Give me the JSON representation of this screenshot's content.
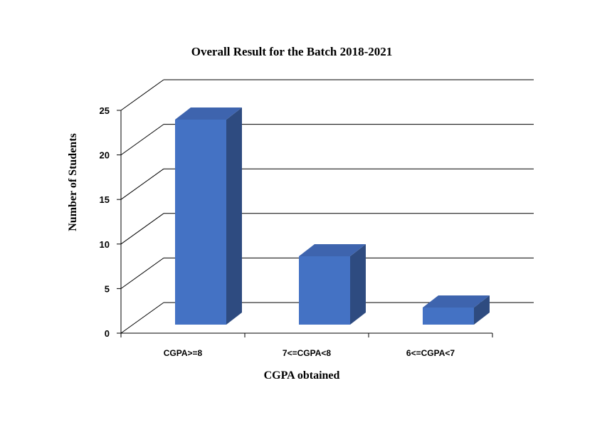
{
  "chart_data": {
    "type": "bar",
    "title": "Overall Result for the Batch 2018-2021",
    "xlabel": "CGPA obtained",
    "ylabel": "Number of Students",
    "categories": [
      "CGPA>=8",
      "7<=CGPA<8",
      "6<=CGPA<7"
    ],
    "values": [
      24,
      8,
      2
    ],
    "ylim": [
      0,
      25
    ],
    "yticks": [
      0,
      5,
      10,
      15,
      20,
      25
    ],
    "grid": true,
    "legend": "none",
    "bar_front_color": "#4472C4",
    "bar_top_color": "#3E64AE",
    "bar_side_color": "#2E4B80"
  }
}
